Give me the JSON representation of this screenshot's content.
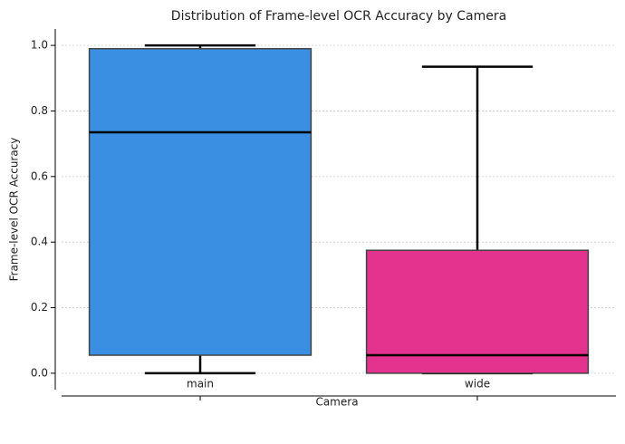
{
  "chart_data": {
    "type": "box",
    "title": "Distribution of Frame-level OCR Accuracy by Camera",
    "x_label": "Camera",
    "y_label": "Frame-level OCR Accuracy",
    "categories": [
      "main",
      "wide"
    ],
    "colors": [
      "#3a8fe3",
      "#e3338f"
    ],
    "stats": [
      {
        "min": 0,
        "q1": 0.055,
        "median": 0.735,
        "q3": 0.99,
        "max": 1.0
      },
      {
        "min": 0,
        "q1": 0,
        "median": 0.055,
        "q3": 0.375,
        "max": 0.935
      }
    ],
    "ylim": [
      -0.05,
      1.05
    ],
    "yticks": [
      {
        "value": 0,
        "label": "0.0"
      },
      0.2,
      0.4,
      0.6,
      0.8,
      {
        "value": 1,
        "label": "1.0"
      }
    ],
    "grid": true
  }
}
